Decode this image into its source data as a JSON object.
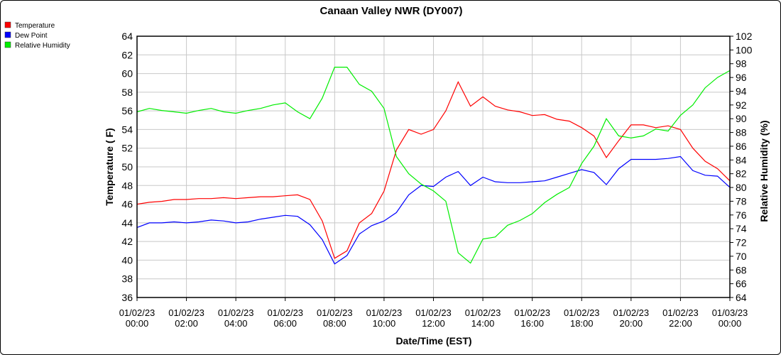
{
  "chart_data": {
    "type": "line",
    "title": "Canaan Valley NWR (DY007)",
    "xlabel": "Date/Time (EST)",
    "ylabel": "Temperature ( F)",
    "y2label": "Relative Humidity (%)",
    "ylim": [
      36,
      64
    ],
    "y2lim": [
      64,
      102
    ],
    "yticks": [
      "36",
      "38",
      "40",
      "42",
      "44",
      "46",
      "48",
      "50",
      "52",
      "54",
      "56",
      "58",
      "60",
      "62",
      "64"
    ],
    "y2ticks": [
      "64",
      "66",
      "68",
      "70",
      "72",
      "74",
      "76",
      "78",
      "80",
      "82",
      "84",
      "86",
      "88",
      "90",
      "92",
      "94",
      "96",
      "98",
      "100",
      "102"
    ],
    "xticks": [
      {
        "date": "01/02/23",
        "time": "00:00"
      },
      {
        "date": "01/02/23",
        "time": "02:00"
      },
      {
        "date": "01/02/23",
        "time": "04:00"
      },
      {
        "date": "01/02/23",
        "time": "06:00"
      },
      {
        "date": "01/02/23",
        "time": "08:00"
      },
      {
        "date": "01/02/23",
        "time": "10:00"
      },
      {
        "date": "01/02/23",
        "time": "12:00"
      },
      {
        "date": "01/02/23",
        "time": "14:00"
      },
      {
        "date": "01/02/23",
        "time": "16:00"
      },
      {
        "date": "01/02/23",
        "time": "18:00"
      },
      {
        "date": "01/02/23",
        "time": "20:00"
      },
      {
        "date": "01/02/23",
        "time": "22:00"
      },
      {
        "date": "01/03/23",
        "time": "00:00"
      }
    ],
    "grid": true,
    "legend_position": "top-left",
    "x_hours": [
      0,
      0.5,
      1,
      1.5,
      2,
      2.5,
      3,
      3.5,
      4,
      4.5,
      5,
      5.5,
      6,
      6.5,
      7,
      7.5,
      8,
      8.5,
      9,
      9.5,
      10,
      10.5,
      11,
      11.5,
      12,
      12.5,
      13,
      13.5,
      14,
      14.5,
      15,
      15.5,
      16,
      16.5,
      17,
      17.5,
      18,
      18.5,
      19,
      19.5,
      20,
      20.5,
      21,
      21.5,
      22,
      22.5,
      23,
      23.5,
      24
    ],
    "series": [
      {
        "name": "Temperature",
        "color": "#ff0000",
        "axis": "left",
        "values": [
          46.0,
          46.2,
          46.3,
          46.5,
          46.5,
          46.6,
          46.6,
          46.7,
          46.6,
          46.7,
          46.8,
          46.8,
          46.9,
          47.0,
          46.5,
          44.2,
          40.2,
          41.0,
          44.0,
          45.0,
          47.4,
          51.8,
          54.0,
          53.5,
          54.0,
          56.0,
          59.1,
          56.5,
          57.5,
          56.5,
          56.1,
          55.9,
          55.5,
          55.6,
          55.1,
          54.9,
          54.2,
          53.3,
          51.0,
          52.8,
          54.5,
          54.5,
          54.2,
          54.4,
          54.0,
          52.0,
          50.6,
          49.8,
          48.5
        ]
      },
      {
        "name": "Dew Point",
        "color": "#0000ff",
        "axis": "left",
        "values": [
          43.5,
          44.0,
          44.0,
          44.1,
          44.0,
          44.1,
          44.3,
          44.2,
          44.0,
          44.1,
          44.4,
          44.6,
          44.8,
          44.7,
          43.8,
          42.2,
          39.6,
          40.5,
          42.8,
          43.7,
          44.2,
          45.1,
          47.0,
          48.0,
          47.9,
          48.9,
          49.5,
          48.0,
          48.9,
          48.4,
          48.3,
          48.3,
          48.4,
          48.5,
          48.9,
          49.3,
          49.7,
          49.4,
          48.1,
          49.8,
          50.8,
          50.8,
          50.8,
          50.9,
          51.1,
          49.6,
          49.1,
          49.0,
          47.8
        ]
      },
      {
        "name": "Relative Humidity",
        "color": "#00ee00",
        "axis": "right",
        "values": [
          91.0,
          91.5,
          91.2,
          91.0,
          90.8,
          91.2,
          91.5,
          91.0,
          90.8,
          91.2,
          91.5,
          92.0,
          92.3,
          91.0,
          90.0,
          93.0,
          97.5,
          97.5,
          95.0,
          94.0,
          91.5,
          84.5,
          82.0,
          80.5,
          79.5,
          78.0,
          70.5,
          69.0,
          72.5,
          72.8,
          74.5,
          75.2,
          76.2,
          77.8,
          79.0,
          80.0,
          83.5,
          86.0,
          90.0,
          87.5,
          87.2,
          87.5,
          88.5,
          88.2,
          90.5,
          92.0,
          94.5,
          96.0,
          97.0
        ]
      }
    ]
  }
}
